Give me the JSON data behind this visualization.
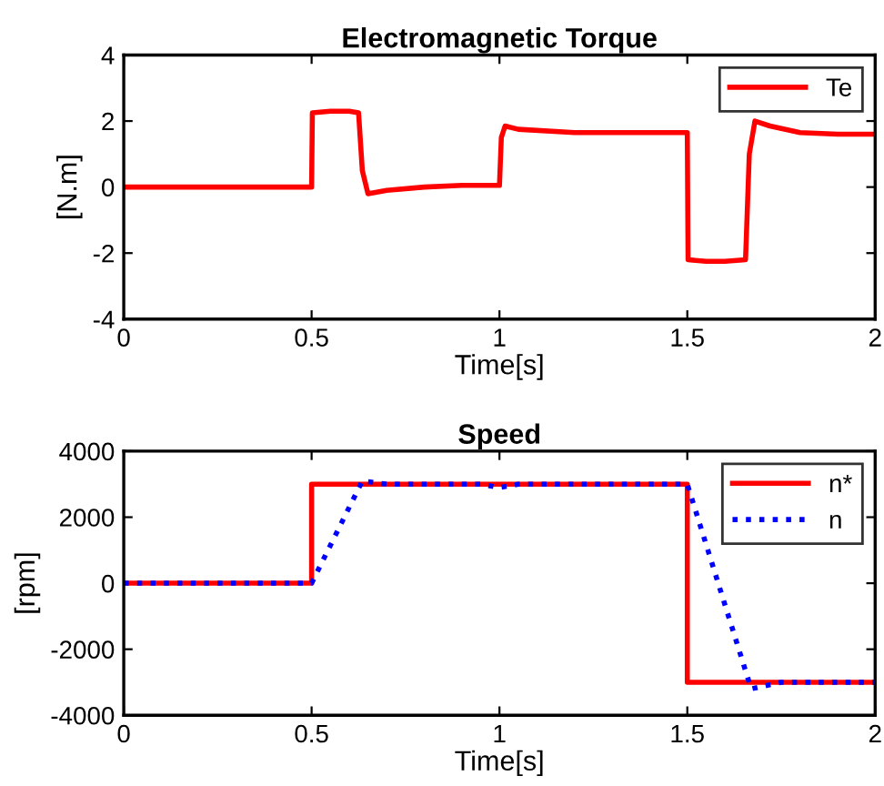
{
  "chart_data": [
    {
      "type": "line",
      "title": "Electromagnetic Torque",
      "xlabel": "Time[s]",
      "ylabel": "[N.m]",
      "xlim": [
        0,
        2
      ],
      "ylim": [
        -4,
        4
      ],
      "xticks": [
        0,
        0.5,
        1,
        1.5,
        2
      ],
      "yticks": [
        -4,
        -2,
        0,
        2,
        4
      ],
      "grid": false,
      "legend": "top right",
      "series": [
        {
          "name": "Te",
          "color": "#ff0000",
          "line_style": "solid",
          "x": [
            0,
            0.5,
            0.502,
            0.55,
            0.6,
            0.625,
            0.635,
            0.65,
            0.7,
            0.8,
            0.9,
            1.0,
            1.005,
            1.015,
            1.05,
            1.2,
            1.4,
            1.5,
            1.502,
            1.55,
            1.6,
            1.655,
            1.665,
            1.68,
            1.72,
            1.8,
            1.9,
            2.0
          ],
          "values": [
            0,
            0,
            2.25,
            2.3,
            2.3,
            2.25,
            0.5,
            -0.2,
            -0.1,
            0.0,
            0.05,
            0.05,
            1.5,
            1.85,
            1.75,
            1.65,
            1.65,
            1.65,
            -2.2,
            -2.25,
            -2.25,
            -2.2,
            1.0,
            2.0,
            1.85,
            1.65,
            1.6,
            1.6
          ]
        }
      ]
    },
    {
      "type": "line",
      "title": "Speed",
      "xlabel": "Time[s]",
      "ylabel": "[rpm]",
      "xlim": [
        0,
        2
      ],
      "ylim": [
        -4000,
        4000
      ],
      "xticks": [
        0,
        0.5,
        1,
        1.5,
        2
      ],
      "yticks": [
        -4000,
        -2000,
        0,
        2000,
        4000
      ],
      "grid": false,
      "legend": "top right",
      "series": [
        {
          "name": "n*",
          "color": "#ff0000",
          "line_style": "solid",
          "x": [
            0,
            0.5,
            0.5,
            1.5,
            1.5,
            2.0
          ],
          "values": [
            0,
            0,
            3000,
            3000,
            -3000,
            -3000
          ]
        },
        {
          "name": "n",
          "color": "#0000ff",
          "line_style": "dotted",
          "x": [
            0,
            0.5,
            0.635,
            0.7,
            0.95,
            1.0,
            1.05,
            1.5,
            1.67,
            1.75,
            2.0
          ],
          "values": [
            0,
            0,
            3100,
            3000,
            3000,
            2900,
            3000,
            3000,
            -3200,
            -3000,
            -3000
          ]
        }
      ]
    }
  ]
}
